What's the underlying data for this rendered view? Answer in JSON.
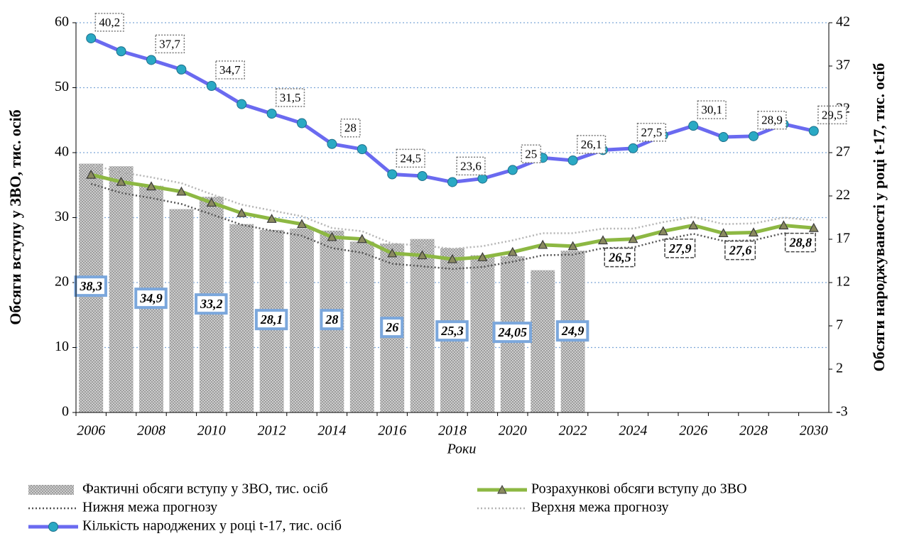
{
  "chart_data": {
    "type": "combo",
    "x_label": "Роки",
    "y_label": "Обсяги вступу у ЗВО, тис. осіб",
    "y2_label": "Обсяги народжуваності у році t-17, тис. осіб",
    "categories": [
      "2006",
      null,
      "2008",
      null,
      "2010",
      null,
      "2012",
      null,
      "2014",
      null,
      "2016",
      null,
      "2018",
      null,
      "2020",
      null,
      "2022",
      null,
      "2024",
      null,
      "2026",
      null,
      "2028",
      null,
      "2030"
    ],
    "ylim": [
      0,
      60
    ],
    "yticks": [
      0,
      10,
      20,
      30,
      40,
      50,
      60
    ],
    "y2lim": [
      -3,
      42
    ],
    "y2ticks": [
      -3,
      2,
      7,
      12,
      17,
      22,
      27,
      32,
      37,
      42
    ],
    "grid": true,
    "series": [
      {
        "name": "Фактичні обсяги вступу  у ЗВО, тис. осіб",
        "type": "bar",
        "color": "#bdbdbd",
        "values": [
          38.3,
          37.9,
          34.9,
          31.3,
          33.2,
          29.0,
          28.1,
          28.3,
          28,
          26.3,
          26,
          26.7,
          25.3,
          24.2,
          24.05,
          21.9,
          24.9,
          null,
          null,
          null,
          null,
          null,
          null,
          null,
          null
        ],
        "value_labels": [
          "38,3",
          null,
          "34,9",
          null,
          "33,2",
          null,
          "28,1",
          null,
          "28",
          null,
          "26",
          null,
          "25,3",
          null,
          "24,05",
          null,
          "24,9",
          null,
          null,
          null,
          null,
          null,
          null,
          null,
          null
        ]
      },
      {
        "name": "Розрахункові обсяги вступу  до ЗВО",
        "type": "line",
        "color": "#8db843",
        "marker": "triangle",
        "values": [
          36.6,
          35.5,
          34.8,
          34.0,
          32.3,
          30.7,
          29.8,
          29.0,
          27.0,
          26.7,
          24.5,
          24.2,
          23.6,
          23.9,
          24.7,
          25.8,
          25.6,
          26.5,
          26.7,
          27.9,
          28.8,
          27.6,
          27.7,
          28.8,
          28.4
        ],
        "value_labels": [
          null,
          null,
          null,
          null,
          null,
          null,
          null,
          null,
          null,
          null,
          null,
          null,
          null,
          null,
          null,
          null,
          null,
          "26,5",
          null,
          "27,9",
          null,
          "27,6",
          null,
          "28,8",
          null
        ]
      },
      {
        "name": "Нижня межа прогнозу",
        "type": "line",
        "color": "#555555",
        "line_style": "dotted",
        "values": [
          35.2,
          33.8,
          33.0,
          32.1,
          30.5,
          28.9,
          28.0,
          27.2,
          25.3,
          24.6,
          22.9,
          22.5,
          22.1,
          22.4,
          23.2,
          24.2,
          24.3,
          25.3,
          25.4,
          26.6,
          27.5,
          26.4,
          26.5,
          27.6,
          27.3
        ]
      },
      {
        "name": "Верхня межа прогнозу",
        "type": "line",
        "color": "#b5b5b5",
        "line_style": "dotted",
        "values": [
          38.1,
          37.0,
          36.2,
          35.3,
          33.6,
          32.0,
          31.1,
          30.2,
          28.4,
          27.9,
          26.0,
          25.7,
          25.2,
          25.6,
          26.5,
          27.6,
          27.6,
          28.3,
          28.3,
          29.3,
          30.1,
          29.0,
          29.1,
          30.0,
          29.6
        ]
      },
      {
        "name": "Кількість народжених у році t-17, тис. осіб",
        "type": "line",
        "color": "#6a6af0",
        "marker": "circle",
        "marker_color": "#2aa9c4",
        "axis": "y2",
        "values": [
          40.2,
          38.7,
          37.7,
          36.6,
          34.7,
          32.6,
          31.5,
          30.4,
          28,
          27.4,
          24.5,
          24.3,
          23.6,
          24.0,
          25,
          26.4,
          26.1,
          27.3,
          27.5,
          29.0,
          30.1,
          28.8,
          28.9,
          30.3,
          29.5
        ],
        "value_labels": [
          "40,2",
          null,
          "37,7",
          null,
          "34,7",
          null,
          "31,5",
          null,
          "28",
          null,
          "24,5",
          null,
          "23,6",
          null,
          "25",
          null,
          "26,1",
          null,
          "27,5",
          null,
          "30,1",
          null,
          "28,9",
          null,
          "29,5"
        ]
      }
    ]
  }
}
